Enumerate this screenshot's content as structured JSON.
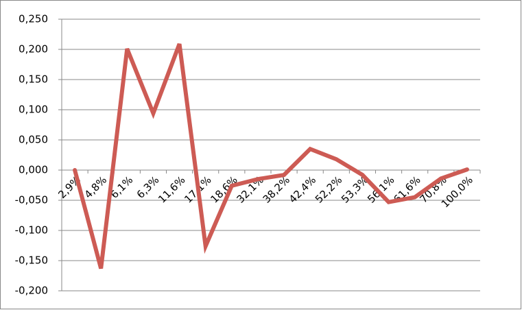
{
  "chart_data": {
    "type": "line",
    "categories": [
      "2,9%",
      "4,8%",
      "6,1%",
      "6,3%",
      "11,6%",
      "17,1%",
      "18,6%",
      "32,1%",
      "38,2%",
      "42,4%",
      "52,2%",
      "53,3%",
      "56,1%",
      "61,6%",
      "70,8%",
      "100,0%"
    ],
    "series": [
      {
        "color": "#cd5b54",
        "values": [
          0.0,
          -0.163,
          0.201,
          0.094,
          0.209,
          -0.126,
          -0.026,
          -0.015,
          -0.008,
          0.035,
          0.018,
          -0.008,
          -0.053,
          -0.045,
          -0.014,
          0.001
        ]
      }
    ],
    "ylim": [
      -0.2,
      0.25
    ],
    "yticks": [
      {
        "value": -0.2,
        "label": "-0,200"
      },
      {
        "value": -0.15,
        "label": "-0,150"
      },
      {
        "value": -0.1,
        "label": "-0,100"
      },
      {
        "value": -0.05,
        "label": "-0,050"
      },
      {
        "value": 0,
        "label": "0,000"
      },
      {
        "value": 0.05,
        "label": "0,050"
      },
      {
        "value": 0.1,
        "label": "0,100"
      },
      {
        "value": 0.15,
        "label": "0,150"
      },
      {
        "value": 0.2,
        "label": "0,200"
      },
      {
        "value": 0.25,
        "label": "0,250"
      }
    ],
    "grid": true
  }
}
